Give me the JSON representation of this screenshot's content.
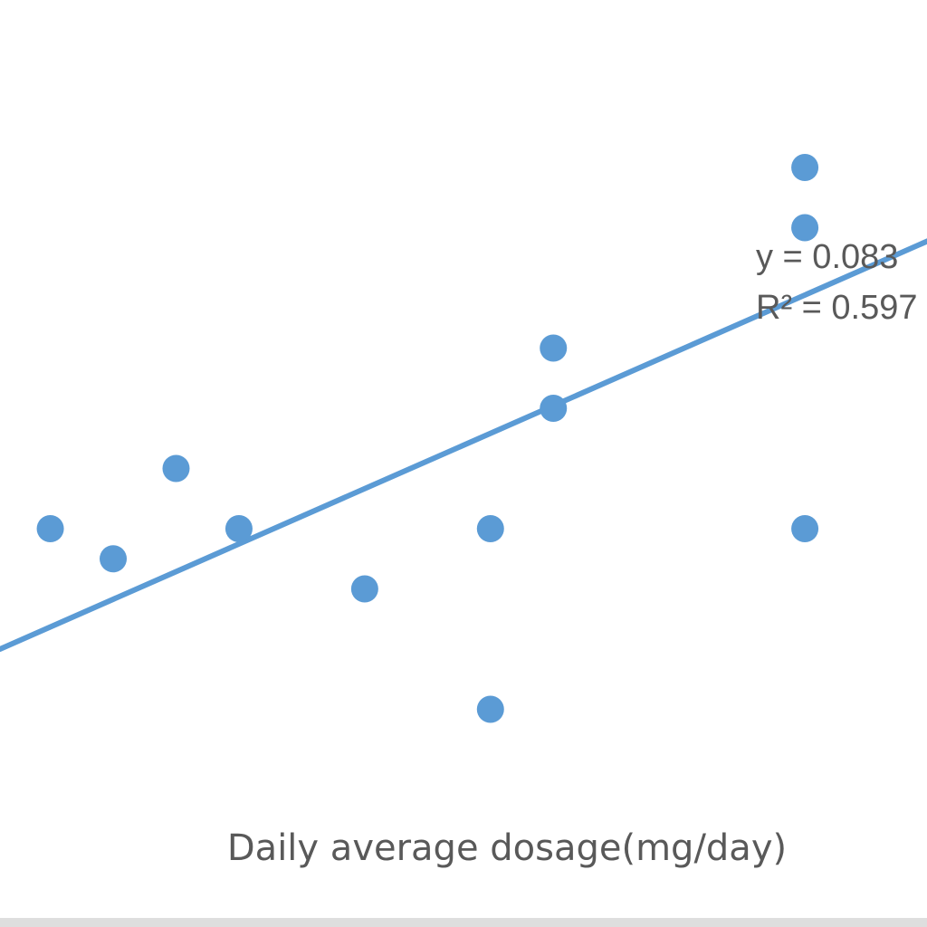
{
  "chart_data": {
    "type": "scatter",
    "title": "",
    "xlabel": "Daily average dosage(mg/day)",
    "ylabel": "",
    "xlim": [
      0.2,
      15.0
    ],
    "ylim": [
      0.0,
      10.0
    ],
    "grid": false,
    "legend": "none",
    "series": [
      {
        "points": [
          {
            "x": 1.0,
            "y": 4.0
          },
          {
            "x": 2.0,
            "y": 3.5
          },
          {
            "x": 3.0,
            "y": 5.0
          },
          {
            "x": 4.0,
            "y": 4.0
          },
          {
            "x": 6.0,
            "y": 3.0
          },
          {
            "x": 8.0,
            "y": 4.0
          },
          {
            "x": 8.0,
            "y": 1.0
          },
          {
            "x": 9.0,
            "y": 6.0
          },
          {
            "x": 9.0,
            "y": 7.0
          },
          {
            "x": 13.0,
            "y": 4.0
          },
          {
            "x": 13.0,
            "y": 9.0
          },
          {
            "x": 13.0,
            "y": 10.0
          }
        ]
      }
    ],
    "trendline": {
      "start": {
        "x": 0.2,
        "y": 2.0
      },
      "end": {
        "x": 15.0,
        "y": 8.8
      },
      "equation": "y = 0.083",
      "r_squared": "R² = 0.597"
    }
  },
  "colors": {
    "points": "#5b9bd5",
    "trendline": "#5b9bd5",
    "text": "#595959"
  }
}
